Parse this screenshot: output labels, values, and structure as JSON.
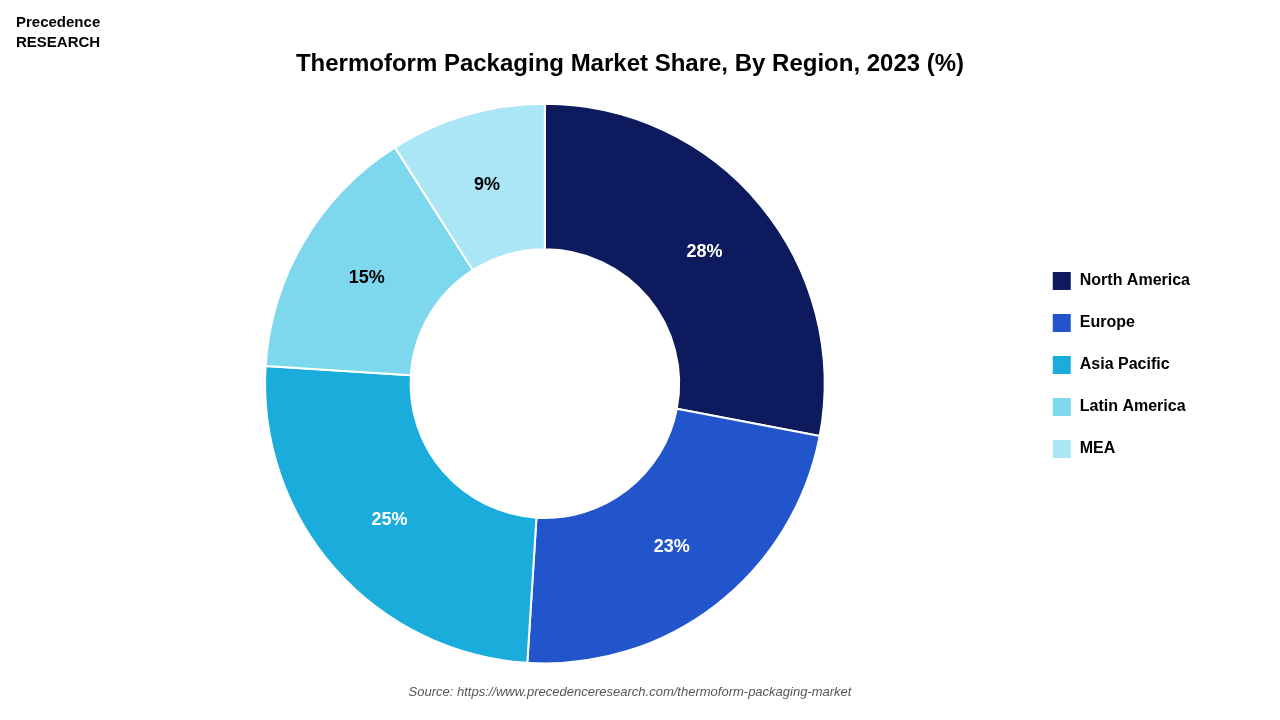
{
  "chart_data": {
    "type": "doughnut",
    "title": "Thermoform Packaging Market Share, By Region, 2023 (%)",
    "categories": [
      "North America",
      "Europe",
      "Asia Pacific",
      "Latin America",
      "MEA"
    ],
    "values": [
      28,
      23,
      25,
      15,
      9
    ],
    "value_labels": [
      "28%",
      "23%",
      "25%",
      "15%",
      "9%"
    ],
    "colors": [
      "#0d1b5e",
      "#2255cc",
      "#1aaddb",
      "#7dd8ee",
      "#aae6f5"
    ],
    "data_labels": true,
    "legend": "right",
    "source": "Source: https://www.precedenceresearch.com/thermoform-packaging-market",
    "annotations": [
      "Precedence\nRESEARCH"
    ]
  }
}
